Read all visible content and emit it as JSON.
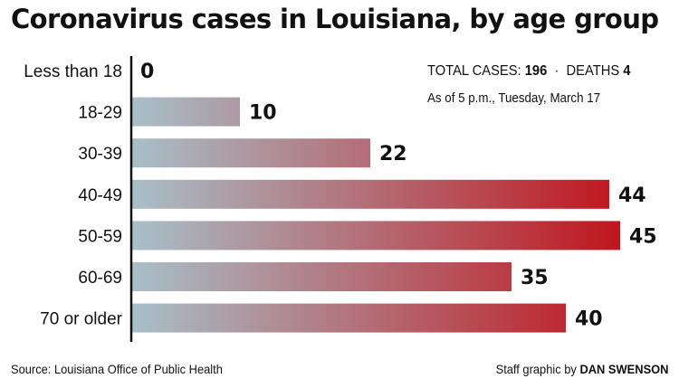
{
  "title": "Coronavirus cases in Louisiana, by age group",
  "summary": {
    "total_label": "TOTAL CASES:",
    "total_value": "196",
    "separator": "·",
    "deaths_label": "DEATHS",
    "deaths_value": "4",
    "as_of": "As of 5 p.m., Tuesday, March 17"
  },
  "footer": {
    "source": "Source: Louisiana Office of Public Health",
    "credit_prefix": "Staff graphic by",
    "credit_name": "DAN SWENSON"
  },
  "colors": {
    "bar_start": "#a8c0c9",
    "bar_end": "#c0141c",
    "axis": "#111111"
  },
  "chart_data": {
    "type": "bar",
    "orientation": "horizontal",
    "title": "Coronavirus cases in Louisiana, by age group",
    "categories": [
      "Less than 18",
      "18-29",
      "30-39",
      "40-49",
      "50-59",
      "60-69",
      "70 or older"
    ],
    "values": [
      0,
      10,
      22,
      44,
      45,
      35,
      40
    ],
    "xlabel": "",
    "ylabel": "",
    "xlim": [
      0,
      45
    ],
    "grid": false,
    "legend": "none"
  }
}
